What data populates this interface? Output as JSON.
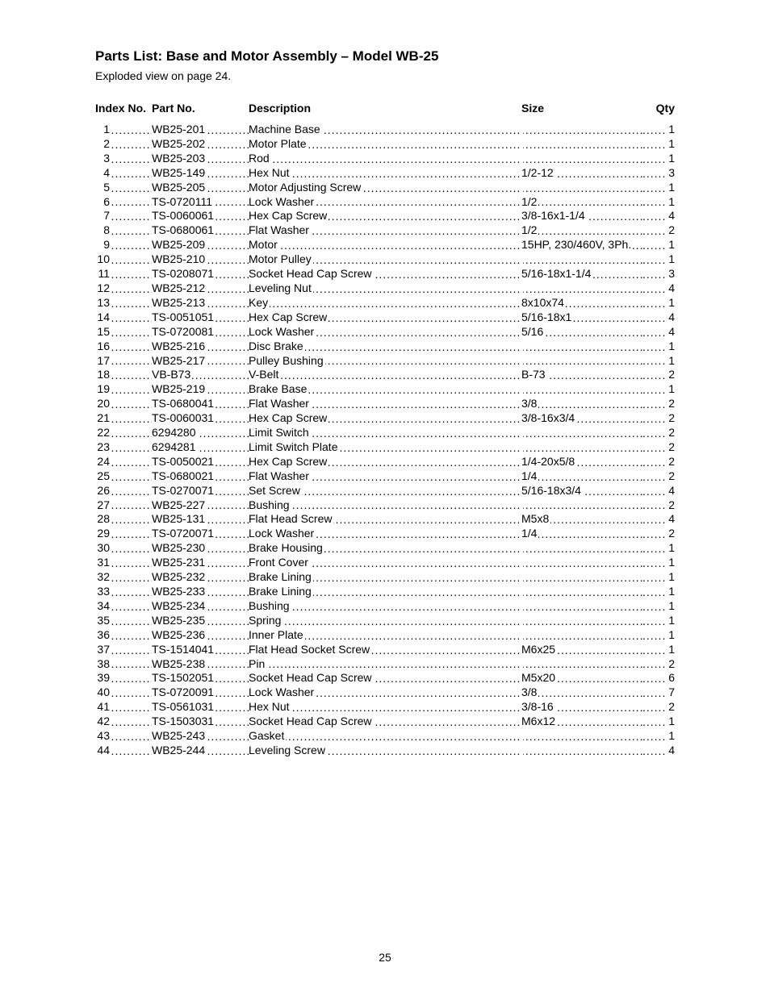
{
  "title": "Parts List: Base and Motor Assembly – Model WB-25",
  "subtitle": "Exploded view on page 24.",
  "page_number": "25",
  "columns": {
    "index": "Index No.",
    "part": "Part No.",
    "desc": "Description",
    "size": "Size",
    "qty": "Qty"
  },
  "rows": [
    {
      "idx": "1",
      "part": "WB25-201",
      "desc": "Machine Base",
      "size": "",
      "qty": "1"
    },
    {
      "idx": "2",
      "part": "WB25-202",
      "desc": "Motor Plate",
      "size": "",
      "qty": "1"
    },
    {
      "idx": "3",
      "part": "WB25-203",
      "desc": "Rod",
      "size": "",
      "qty": "1"
    },
    {
      "idx": "4",
      "part": "WB25-149",
      "desc": "Hex Nut",
      "size": "1/2-12",
      "qty": "3"
    },
    {
      "idx": "5",
      "part": "WB25-205",
      "desc": "Motor Adjusting Screw",
      "size": "",
      "qty": "1"
    },
    {
      "idx": "6",
      "part": "TS-0720111",
      "desc": "Lock Washer",
      "size": "1/2",
      "qty": "1"
    },
    {
      "idx": "7",
      "part": "TS-0060061",
      "desc": "Hex Cap Screw",
      "size": "3/8-16x1-1/4",
      "qty": "4"
    },
    {
      "idx": "8",
      "part": "TS-0680061",
      "desc": "Flat Washer",
      "size": "1/2",
      "qty": "2"
    },
    {
      "idx": "9",
      "part": "WB25-209",
      "desc": "Motor",
      "size": "15HP, 230/460V, 3Ph.",
      "qty": "1"
    },
    {
      "idx": "10",
      "part": "WB25-210",
      "desc": "Motor Pulley",
      "size": "",
      "qty": "1"
    },
    {
      "idx": "11",
      "part": "TS-0208071",
      "desc": "Socket Head Cap Screw",
      "size": "5/16-18x1-1/4",
      "qty": "3"
    },
    {
      "idx": "12",
      "part": "WB25-212",
      "desc": "Leveling Nut",
      "size": "",
      "qty": "4"
    },
    {
      "idx": "13",
      "part": "WB25-213",
      "desc": "Key",
      "size": "8x10x74",
      "qty": "1"
    },
    {
      "idx": "14",
      "part": "TS-0051051",
      "desc": "Hex Cap Screw",
      "size": "5/16-18x1",
      "qty": "4"
    },
    {
      "idx": "15",
      "part": "TS-0720081",
      "desc": "Lock Washer",
      "size": "5/16",
      "qty": "4"
    },
    {
      "idx": "16",
      "part": "WB25-216",
      "desc": "Disc Brake",
      "size": "",
      "qty": "1"
    },
    {
      "idx": "17",
      "part": "WB25-217",
      "desc": "Pulley Bushing",
      "size": "",
      "qty": "1"
    },
    {
      "idx": "18",
      "part": "VB-B73",
      "desc": "V-Belt",
      "size": "B-73",
      "qty": "2"
    },
    {
      "idx": "19",
      "part": "WB25-219",
      "desc": "Brake Base",
      "size": "",
      "qty": "1"
    },
    {
      "idx": "20",
      "part": "TS-0680041",
      "desc": "Flat Washer",
      "size": "3/8",
      "qty": "2"
    },
    {
      "idx": "21",
      "part": "TS-0060031",
      "desc": "Hex Cap Screw",
      "size": "3/8-16x3/4",
      "qty": "2"
    },
    {
      "idx": "22",
      "part": "6294280",
      "desc": "Limit Switch",
      "size": "",
      "qty": "2"
    },
    {
      "idx": "23",
      "part": "6294281",
      "desc": "Limit Switch Plate",
      "size": "",
      "qty": "2"
    },
    {
      "idx": "24",
      "part": "TS-0050021",
      "desc": "Hex Cap Screw",
      "size": "1/4-20x5/8",
      "qty": "2"
    },
    {
      "idx": "25",
      "part": "TS-0680021",
      "desc": "Flat Washer",
      "size": "1/4",
      "qty": "2"
    },
    {
      "idx": "26",
      "part": "TS-0270071",
      "desc": "Set Screw",
      "size": "5/16-18x3/4",
      "qty": "4"
    },
    {
      "idx": "27",
      "part": "WB25-227",
      "desc": "Bushing",
      "size": "",
      "qty": "2"
    },
    {
      "idx": "28",
      "part": "WB25-131",
      "desc": "Flat Head Screw",
      "size": "M5x8",
      "qty": "4"
    },
    {
      "idx": "29",
      "part": "TS-0720071",
      "desc": "Lock Washer",
      "size": "1/4",
      "qty": "2"
    },
    {
      "idx": "30",
      "part": "WB25-230",
      "desc": "Brake Housing",
      "size": "",
      "qty": "1"
    },
    {
      "idx": "31",
      "part": "WB25-231",
      "desc": "Front Cover",
      "size": "",
      "qty": "1"
    },
    {
      "idx": "32",
      "part": "WB25-232",
      "desc": "Brake Lining",
      "size": "",
      "qty": "1"
    },
    {
      "idx": "33",
      "part": "WB25-233",
      "desc": "Brake Lining",
      "size": "",
      "qty": "1"
    },
    {
      "idx": "34",
      "part": "WB25-234",
      "desc": "Bushing",
      "size": "",
      "qty": "1"
    },
    {
      "idx": "35",
      "part": "WB25-235",
      "desc": "Spring",
      "size": "",
      "qty": "1"
    },
    {
      "idx": "36",
      "part": "WB25-236",
      "desc": "Inner Plate",
      "size": "",
      "qty": "1"
    },
    {
      "idx": "37",
      "part": "TS-1514041",
      "desc": "Flat Head Socket Screw",
      "size": "M6x25",
      "qty": "1"
    },
    {
      "idx": "38",
      "part": "WB25-238",
      "desc": "Pin",
      "size": "",
      "qty": "2"
    },
    {
      "idx": "39",
      "part": "TS-1502051",
      "desc": "Socket Head Cap Screw",
      "size": "M5x20",
      "qty": "6"
    },
    {
      "idx": "40",
      "part": "TS-0720091",
      "desc": "Lock Washer",
      "size": "3/8",
      "qty": "7"
    },
    {
      "idx": "41",
      "part": "TS-0561031",
      "desc": "Hex Nut",
      "size": "3/8-16",
      "qty": "2"
    },
    {
      "idx": "42",
      "part": "TS-1503031",
      "desc": "Socket Head Cap Screw",
      "size": "M6x12",
      "qty": "1"
    },
    {
      "idx": "43",
      "part": "WB25-243",
      "desc": "Gasket",
      "size": "",
      "qty": "1"
    },
    {
      "idx": "44",
      "part": "WB25-244",
      "desc": "Leveling Screw",
      "size": "",
      "qty": "4"
    }
  ]
}
